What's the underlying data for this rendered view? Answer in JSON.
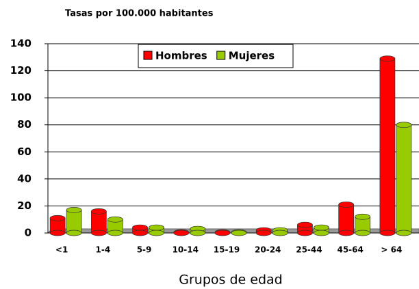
{
  "chart_data": {
    "type": "bar",
    "title": "Tasas por 100.000 habitantes",
    "x_label": "Grupos de edad",
    "categories": [
      "<1",
      "1-4",
      "5-9",
      "10-14",
      "15-19",
      "20-24",
      "25-44",
      "45-64",
      "> 64"
    ],
    "series": [
      {
        "name": "Hombres",
        "color": "#ff0000",
        "values": [
          11,
          16,
          4,
          0.5,
          0.5,
          2,
          6,
          21,
          129
        ]
      },
      {
        "name": "Mujeres",
        "color": "#99cc00",
        "values": [
          17,
          10,
          4,
          3,
          0.5,
          2,
          4,
          12,
          80
        ]
      }
    ],
    "ylim": [
      0,
      140
    ],
    "yticks": [
      0,
      20,
      40,
      60,
      80,
      100,
      120,
      140
    ],
    "grid": true,
    "legend": "top"
  }
}
